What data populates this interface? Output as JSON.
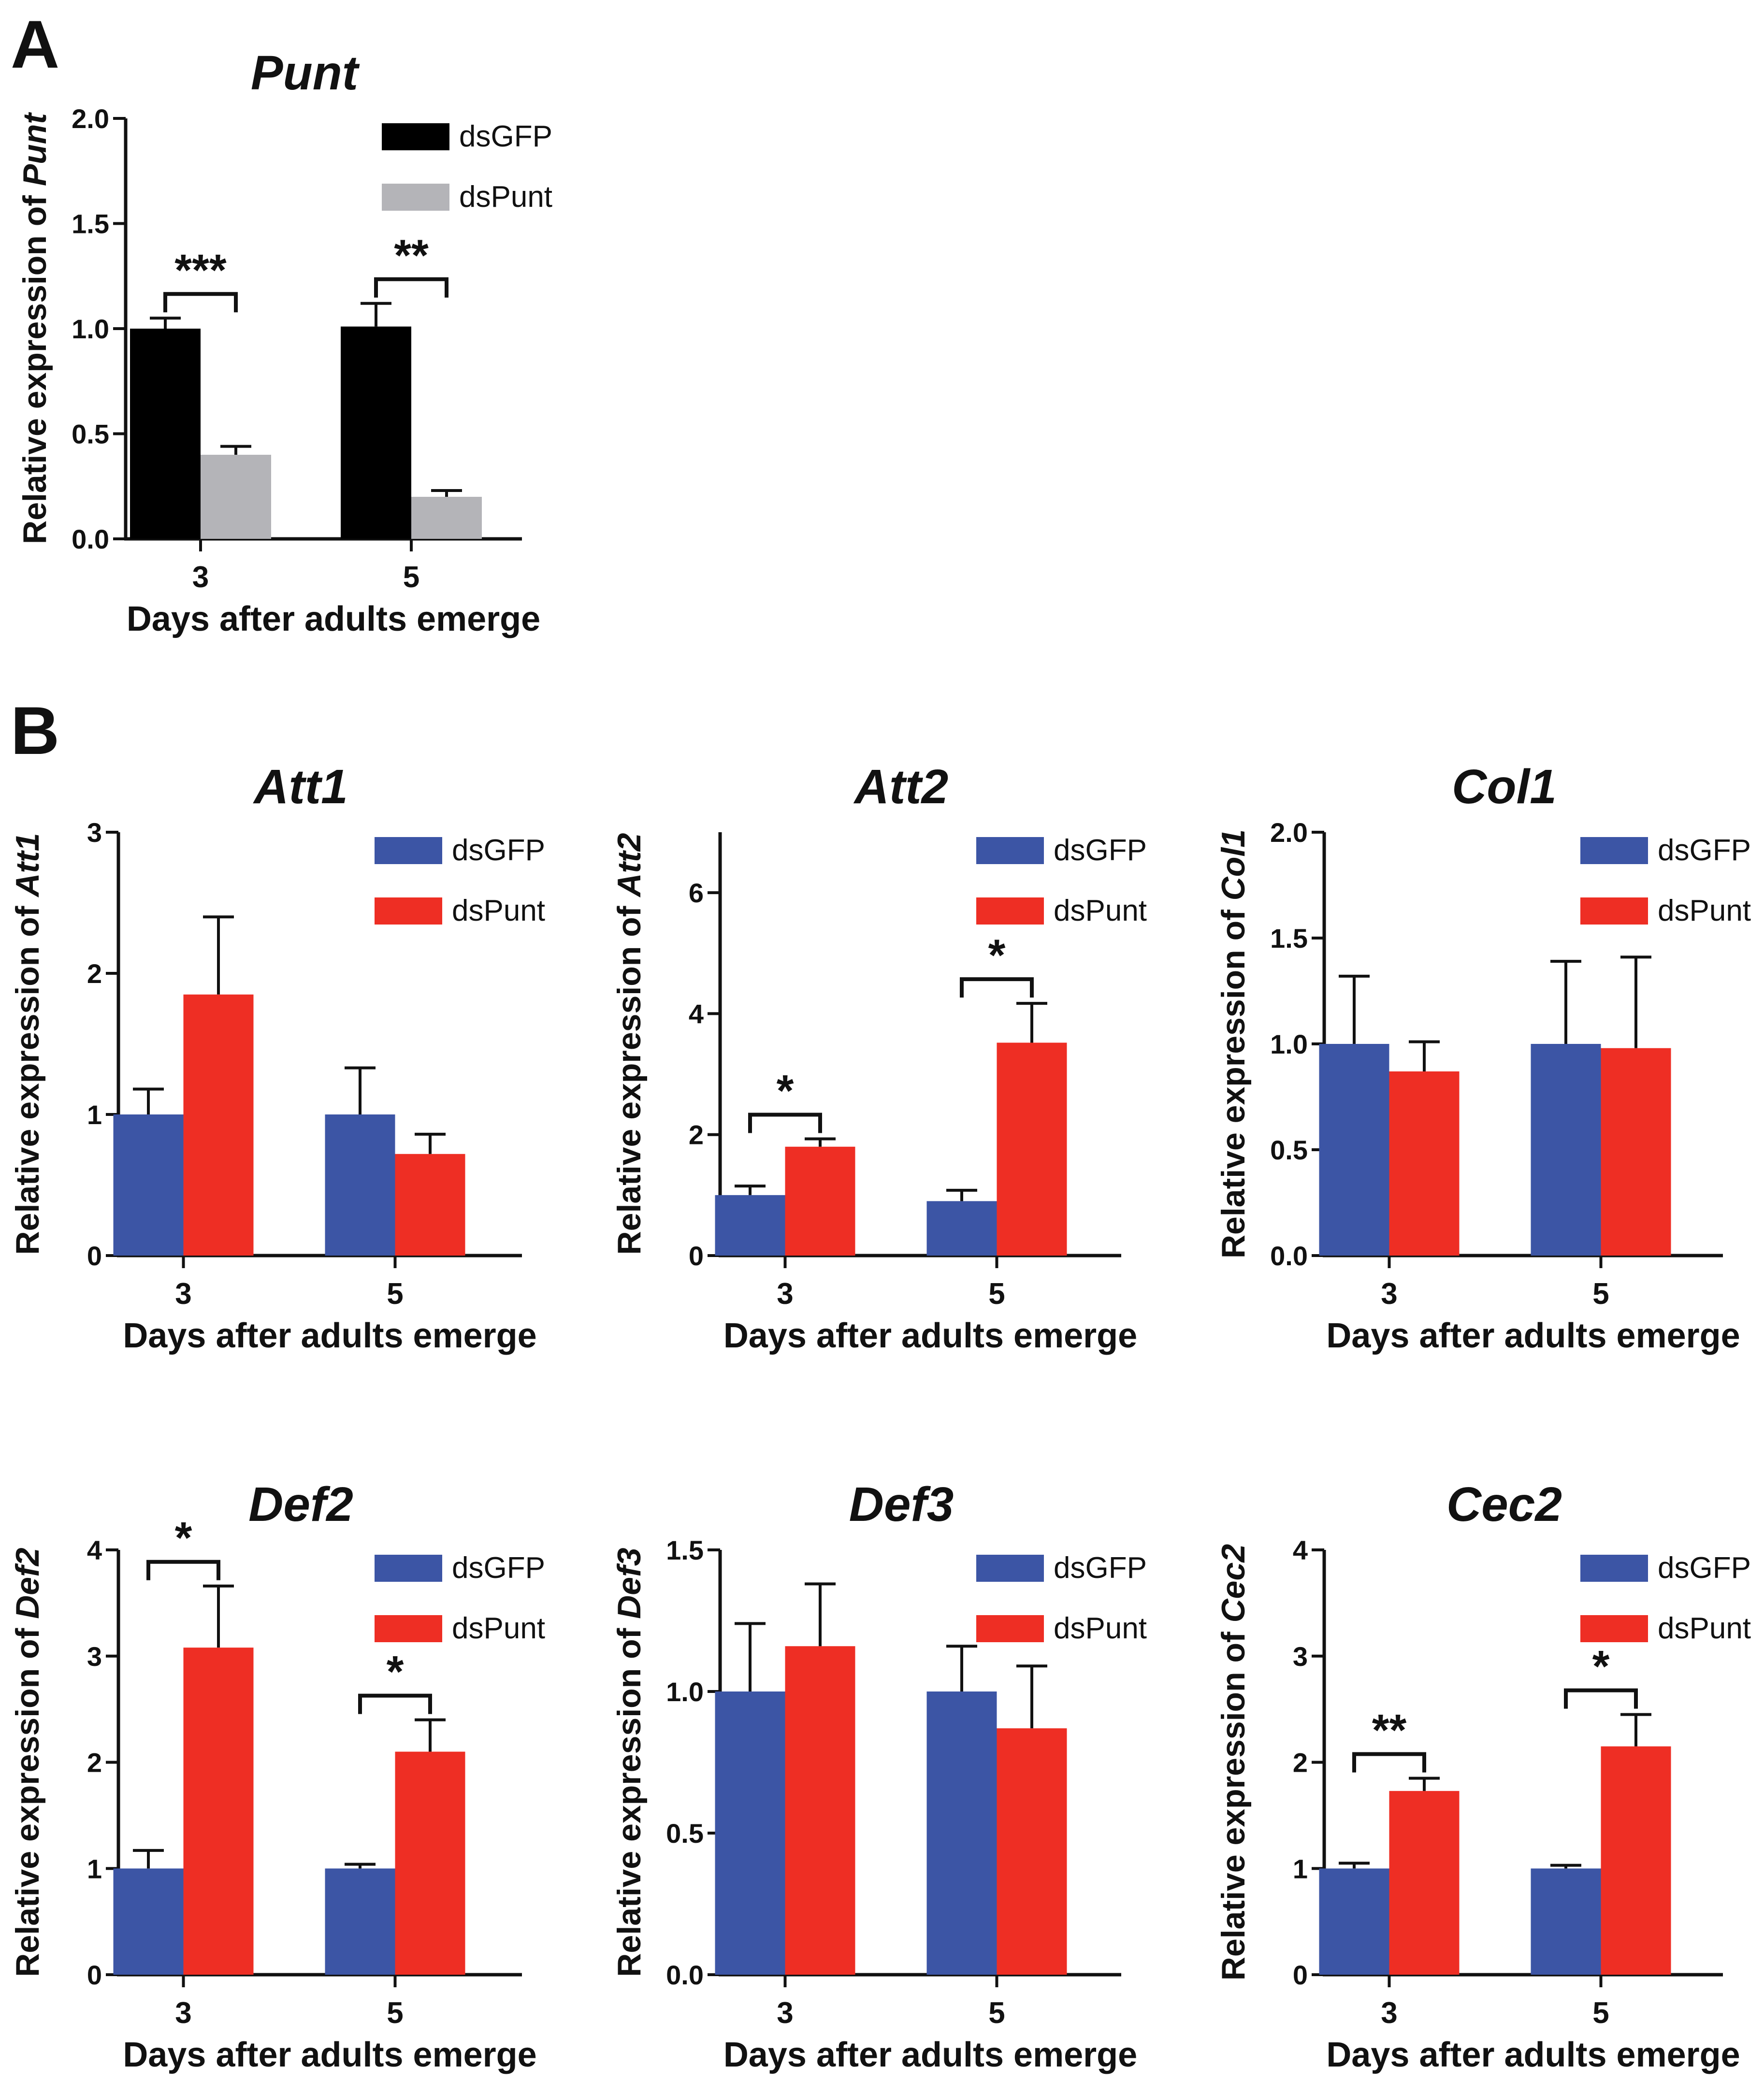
{
  "panels": [
    {
      "letter": "A"
    },
    {
      "letter": "B"
    }
  ],
  "chart_data": [
    {
      "type": "bar",
      "title": "Punt",
      "ylabel_prefix": "Relative expression of ",
      "ylabel_gene": "Punt",
      "xlabel": "Days after adults emerge",
      "categories": [
        "3",
        "5"
      ],
      "ylim": [
        0,
        2.0
      ],
      "yticks": [
        "0.0",
        "0.5",
        "1.0",
        "1.5",
        "2.0"
      ],
      "ytick_values": [
        0,
        0.5,
        1.0,
        1.5,
        2.0
      ],
      "colors": [
        "#000000",
        "#b4b4b8"
      ],
      "series": [
        {
          "name": "dsGFP",
          "values": [
            1.0,
            1.01
          ],
          "errors": [
            0.05,
            0.11
          ]
        },
        {
          "name": "dsPunt",
          "values": [
            0.4,
            0.2
          ],
          "errors": [
            0.04,
            0.03
          ]
        }
      ],
      "significance": [
        "***",
        "**"
      ],
      "legend": "top-right"
    },
    {
      "type": "bar",
      "title": "Att1",
      "ylabel_prefix": "Relative expression of ",
      "ylabel_gene": "Att1",
      "xlabel": "Days after adults emerge",
      "categories": [
        "3",
        "5"
      ],
      "ylim": [
        0,
        3
      ],
      "yticks": [
        "0",
        "1",
        "2",
        "3"
      ],
      "ytick_values": [
        0,
        1,
        2,
        3
      ],
      "colors": [
        "#3c55a5",
        "#ee2e24"
      ],
      "series": [
        {
          "name": "dsGFP",
          "values": [
            1.0,
            1.0
          ],
          "errors": [
            0.18,
            0.33
          ]
        },
        {
          "name": "dsPunt",
          "values": [
            1.85,
            0.72
          ],
          "errors": [
            0.55,
            0.14
          ]
        }
      ],
      "significance": [
        "",
        ""
      ],
      "legend": "top-right"
    },
    {
      "type": "bar",
      "title": "Att2",
      "ylabel_prefix": "Relative expression of ",
      "ylabel_gene": "Att2",
      "xlabel": "Days after adults emerge",
      "categories": [
        "3",
        "5"
      ],
      "ylim": [
        0,
        7
      ],
      "yticks": [
        "0",
        "2",
        "4",
        "6"
      ],
      "ytick_values": [
        0,
        2,
        4,
        6
      ],
      "colors": [
        "#3c55a5",
        "#ee2e24"
      ],
      "series": [
        {
          "name": "dsGFP",
          "values": [
            1.0,
            0.9
          ],
          "errors": [
            0.15,
            0.18
          ]
        },
        {
          "name": "dsPunt",
          "values": [
            1.8,
            3.52
          ],
          "errors": [
            0.13,
            0.65
          ]
        }
      ],
      "significance": [
        "*",
        "*"
      ],
      "legend": "top-right"
    },
    {
      "type": "bar",
      "title": "Col1",
      "ylabel_prefix": "Relative expression of ",
      "ylabel_gene": "Col1",
      "xlabel": "Days after adults emerge",
      "categories": [
        "3",
        "5"
      ],
      "ylim": [
        0,
        2.0
      ],
      "yticks": [
        "0.0",
        "0.5",
        "1.0",
        "1.5",
        "2.0"
      ],
      "ytick_values": [
        0,
        0.5,
        1.0,
        1.5,
        2.0
      ],
      "colors": [
        "#3c55a5",
        "#ee2e24"
      ],
      "series": [
        {
          "name": "dsGFP",
          "values": [
            1.0,
            1.0
          ],
          "errors": [
            0.32,
            0.39
          ]
        },
        {
          "name": "dsPunt",
          "values": [
            0.87,
            0.98
          ],
          "errors": [
            0.14,
            0.43
          ]
        }
      ],
      "significance": [
        "",
        ""
      ],
      "legend": "top-right"
    },
    {
      "type": "bar",
      "title": "Def2",
      "ylabel_prefix": "Relative expression of ",
      "ylabel_gene": "Def2",
      "xlabel": "Days after adults emerge",
      "categories": [
        "3",
        "5"
      ],
      "ylim": [
        0,
        4
      ],
      "yticks": [
        "0",
        "1",
        "2",
        "3",
        "4"
      ],
      "ytick_values": [
        0,
        1,
        2,
        3,
        4
      ],
      "colors": [
        "#3c55a5",
        "#ee2e24"
      ],
      "series": [
        {
          "name": "dsGFP",
          "values": [
            1.0,
            1.0
          ],
          "errors": [
            0.17,
            0.04
          ]
        },
        {
          "name": "dsPunt",
          "values": [
            3.08,
            2.1
          ],
          "errors": [
            0.58,
            0.3
          ]
        }
      ],
      "significance": [
        "*",
        "*"
      ],
      "legend": "top-right"
    },
    {
      "type": "bar",
      "title": "Def3",
      "ylabel_prefix": "Relative expression of ",
      "ylabel_gene": "Def3",
      "xlabel": "Days after adults emerge",
      "categories": [
        "3",
        "5"
      ],
      "ylim": [
        0,
        1.5
      ],
      "yticks": [
        "0.0",
        "0.5",
        "1.0",
        "1.5"
      ],
      "ytick_values": [
        0,
        0.5,
        1.0,
        1.5
      ],
      "colors": [
        "#3c55a5",
        "#ee2e24"
      ],
      "series": [
        {
          "name": "dsGFP",
          "values": [
            1.0,
            1.0
          ],
          "errors": [
            0.24,
            0.16
          ]
        },
        {
          "name": "dsPunt",
          "values": [
            1.16,
            0.87
          ],
          "errors": [
            0.22,
            0.22
          ]
        }
      ],
      "significance": [
        "",
        ""
      ],
      "legend": "top-right"
    },
    {
      "type": "bar",
      "title": "Cec2",
      "ylabel_prefix": "Relative expression of ",
      "ylabel_gene": "Cec2",
      "xlabel": "Days after adults emerge",
      "categories": [
        "3",
        "5"
      ],
      "ylim": [
        0,
        4
      ],
      "yticks": [
        "0",
        "1",
        "2",
        "3",
        "4"
      ],
      "ytick_values": [
        0,
        1,
        2,
        3,
        4
      ],
      "colors": [
        "#3c55a5",
        "#ee2e24"
      ],
      "series": [
        {
          "name": "dsGFP",
          "values": [
            1.0,
            1.0
          ],
          "errors": [
            0.05,
            0.03
          ]
        },
        {
          "name": "dsPunt",
          "values": [
            1.73,
            2.15
          ],
          "errors": [
            0.12,
            0.3
          ]
        }
      ],
      "significance": [
        "**",
        "*"
      ],
      "legend": "top-right"
    }
  ]
}
